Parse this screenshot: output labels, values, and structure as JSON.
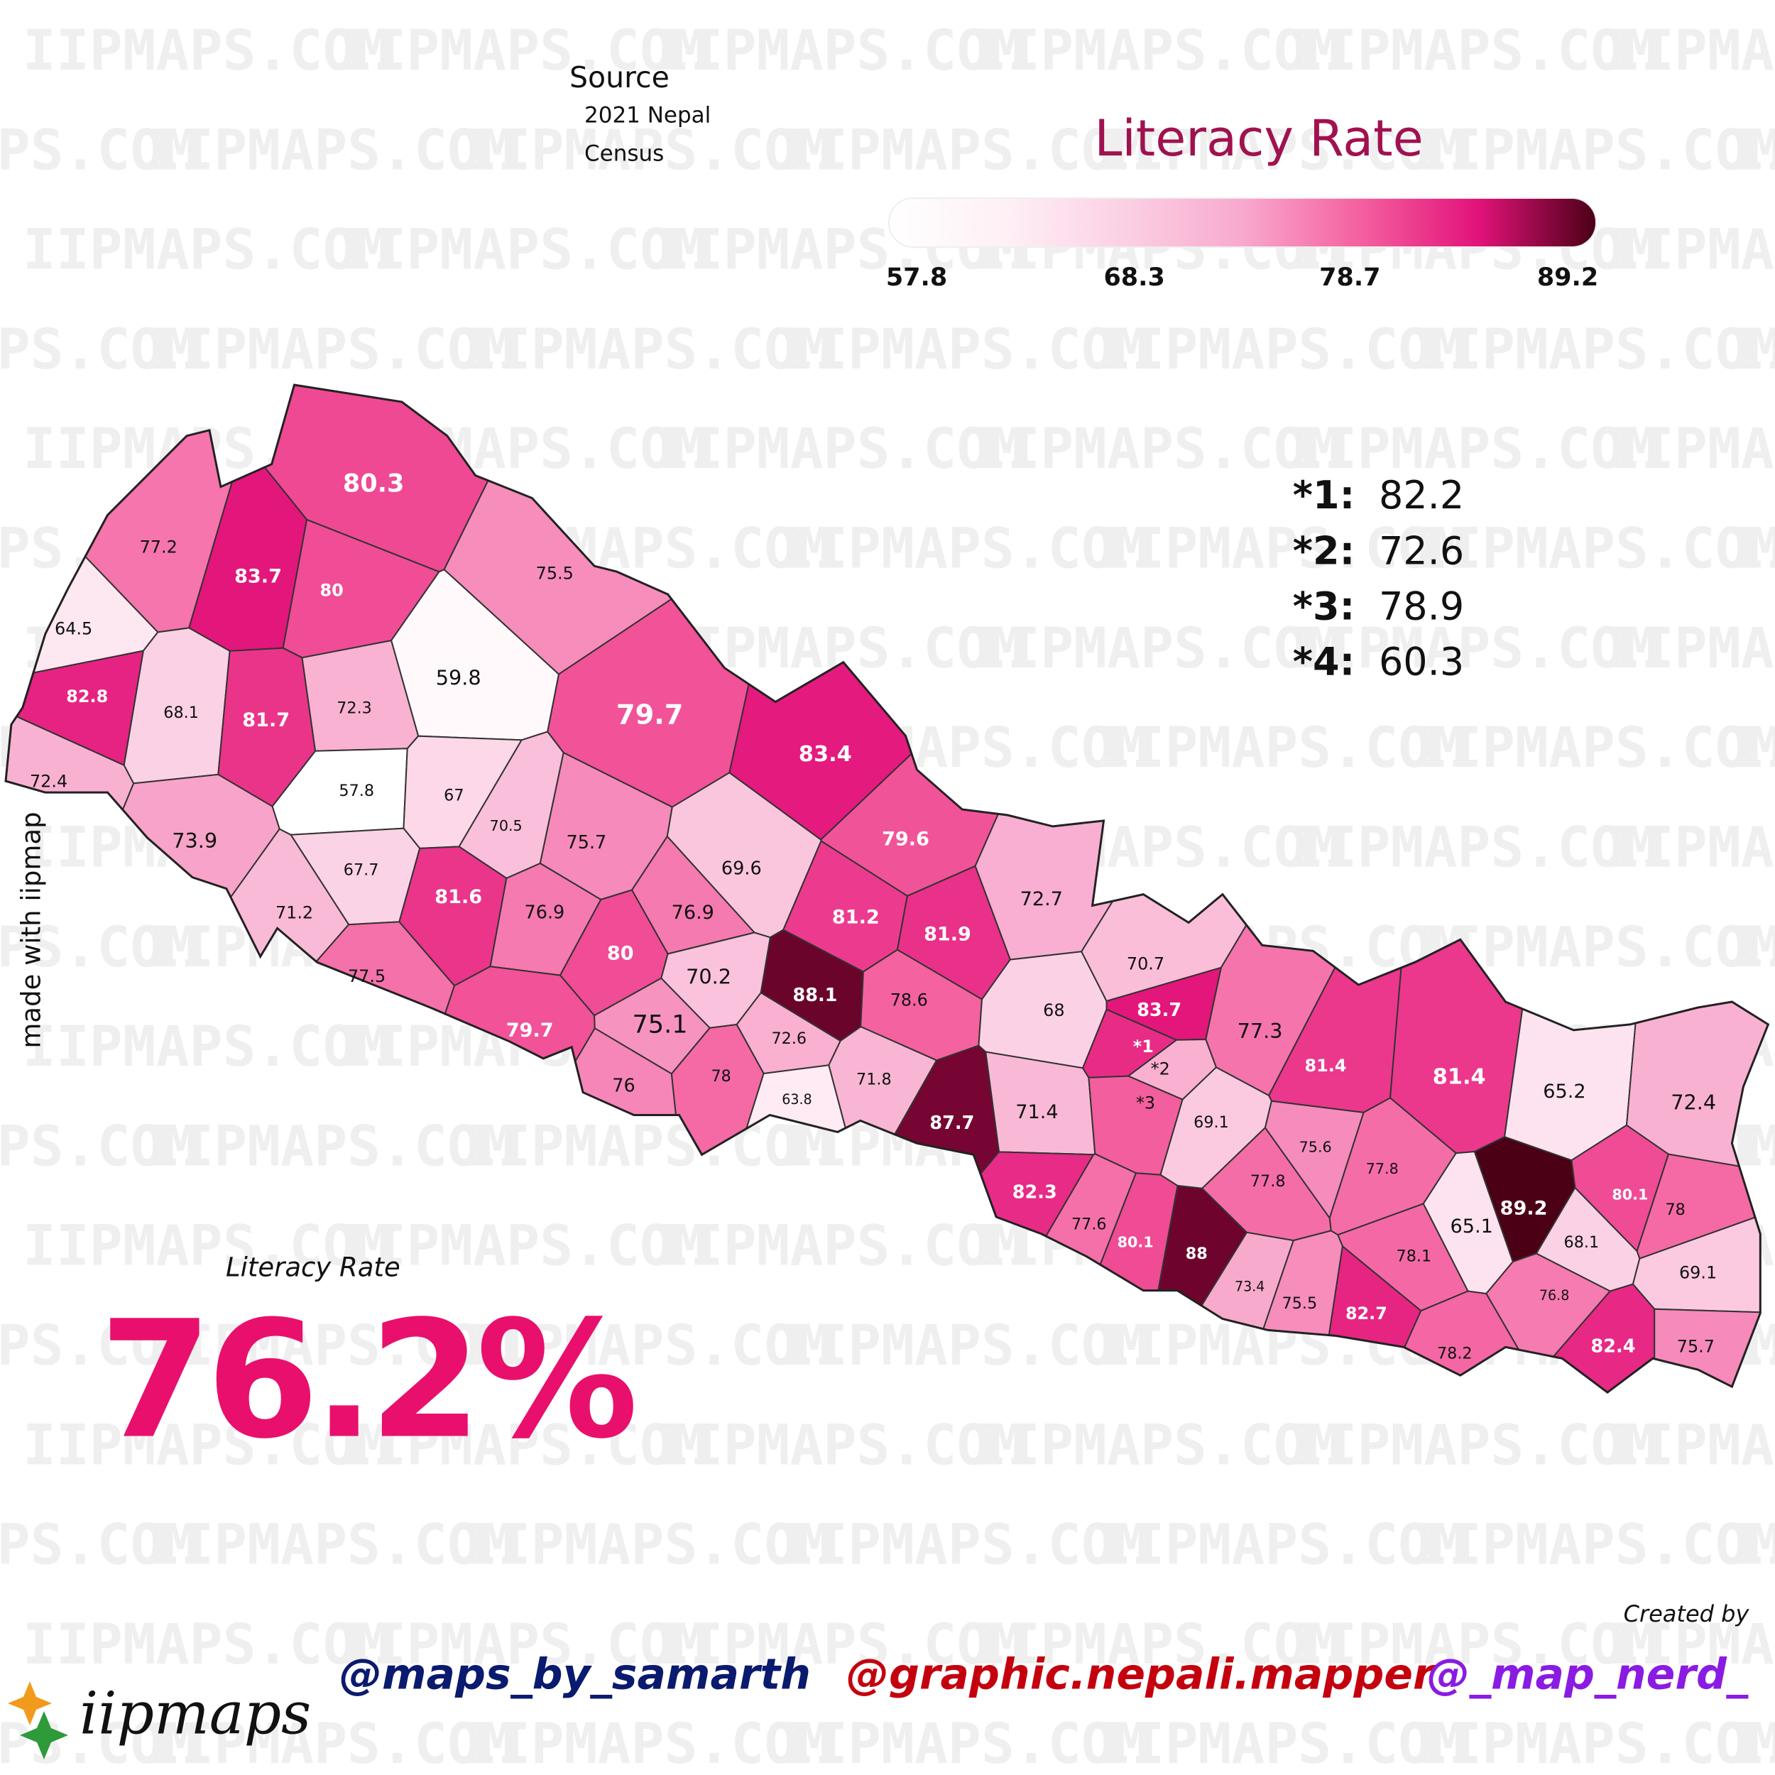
{
  "watermark": "IIPMAPS.COM",
  "source": {
    "title": "Source",
    "lines": [
      "2021 Nepal",
      "Census"
    ]
  },
  "legend": {
    "title": "Literacy Rate",
    "ticks": [
      57.8,
      68.3,
      78.7,
      89.2
    ],
    "colors": [
      "#ffffff",
      "#fef0f6",
      "#fbd0e4",
      "#f8a9cd",
      "#f4609f",
      "#e2127a",
      "#4b0016"
    ]
  },
  "notes": [
    {
      "key": "*1:",
      "map_label": "*1",
      "value": 82.2
    },
    {
      "key": "*2:",
      "map_label": "*2",
      "value": 72.6
    },
    {
      "key": "*3:",
      "map_label": "*3",
      "value": 78.9
    },
    {
      "key": "*4:",
      "value": 60.3
    }
  ],
  "districts": [
    80.3,
    77.2,
    83.7,
    80,
    75.5,
    64.5,
    59.8,
    82.8,
    68.1,
    81.7,
    72.3,
    79.7,
    83.4,
    72.4,
    57.8,
    67,
    70.5,
    73.9,
    75.7,
    79.6,
    69.6,
    67.7,
    72.7,
    81.6,
    76.9,
    76.9,
    71.2,
    81.2,
    81.9,
    70.7,
    80,
    77.5,
    70.2,
    88.1,
    78.6,
    83.7,
    68,
    79.7,
    75.1,
    77.3,
    72.6,
    81.4,
    81.4,
    76,
    78,
    71.8,
    65.2,
    72.4,
    63.8,
    71.4,
    69.1,
    87.7,
    75.6,
    77.8,
    77.8,
    80.1,
    82.3,
    89.2,
    78,
    77.6,
    65.1,
    68.1,
    80.1,
    88,
    78.1,
    69.1,
    73.4,
    76.8,
    75.5,
    82.7,
    82.4,
    75.7,
    78.2
  ],
  "national": {
    "label": "Literacy Rate",
    "value": "76.2%"
  },
  "side_note": "made with iipmap",
  "credits": {
    "title": "Created by",
    "handles": [
      "@maps_by_samarth",
      "@graphic.nepali.mapper",
      "@_map_nerd_"
    ]
  },
  "logo": "iipmaps"
}
